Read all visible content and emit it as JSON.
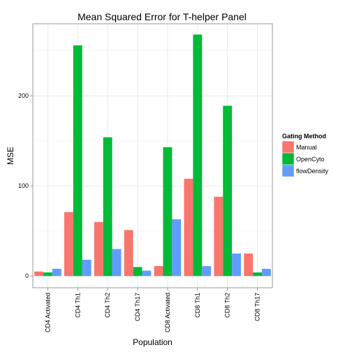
{
  "chart_data": {
    "type": "bar",
    "title": "Mean Squared Error for T-helper Panel",
    "xlabel": "Population",
    "ylabel": "MSE",
    "categories": [
      "CD4 Activated",
      "CD4 Th1",
      "CD4 Th2",
      "CD4 Th17",
      "CD8 Activated",
      "CD8 Th1",
      "CD8 Th2",
      "CD8 Th17"
    ],
    "series": [
      {
        "name": "Manual",
        "color": "#F8766D",
        "values": [
          5,
          71,
          60,
          51,
          11,
          108,
          88,
          25
        ]
      },
      {
        "name": "OpenCyto",
        "color": "#00BA38",
        "values": [
          4,
          256,
          154,
          10,
          143,
          268,
          189,
          4
        ]
      },
      {
        "name": "flowDensity",
        "color": "#619CFF",
        "values": [
          8,
          18,
          30,
          6,
          63,
          11,
          25,
          8
        ]
      }
    ],
    "ylim": [
      -13,
      280
    ],
    "yticks": [
      0,
      100,
      200
    ],
    "grid": true,
    "legend": {
      "title": "Gating Method",
      "position": "right"
    }
  }
}
